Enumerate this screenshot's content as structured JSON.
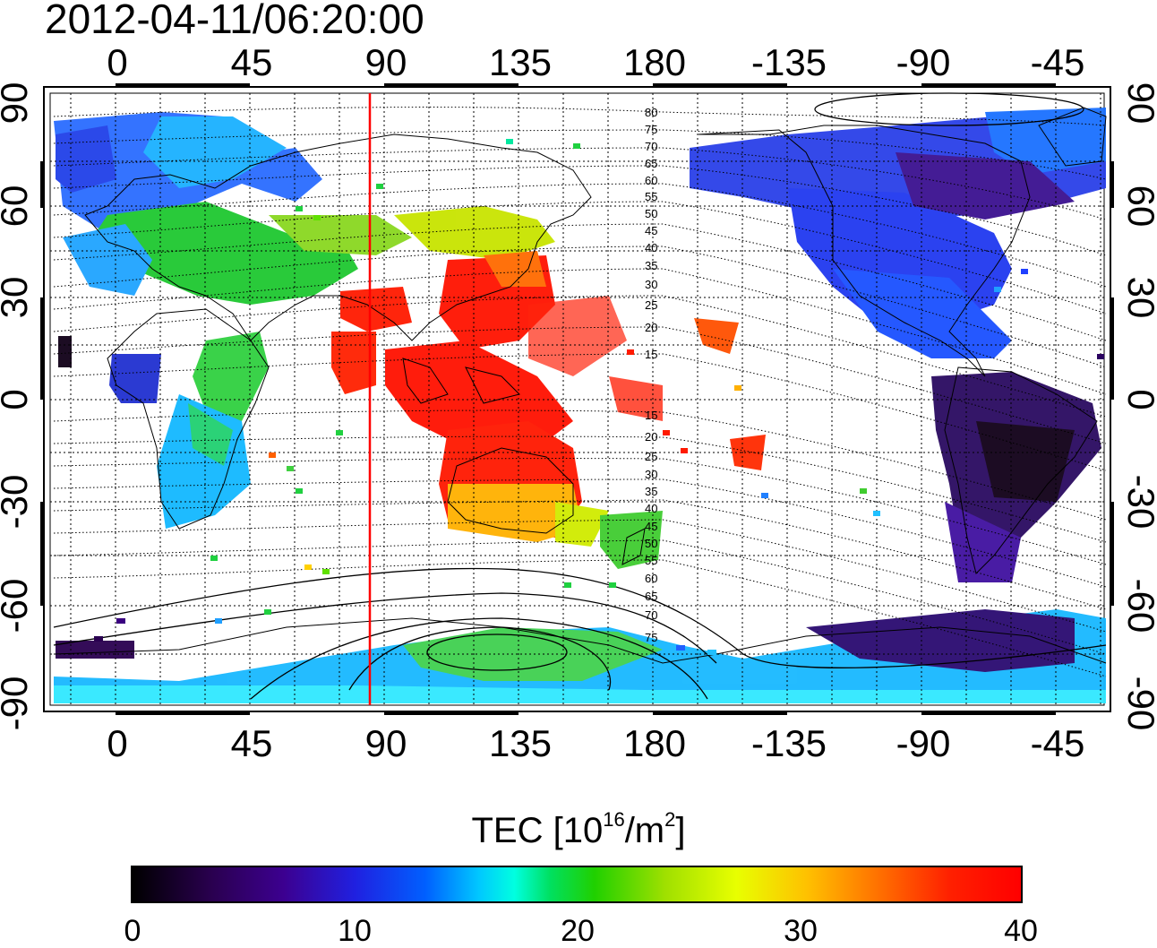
{
  "title": "2012-04-11/06:20:00",
  "map": {
    "lon_labels": [
      "0",
      "45",
      "90",
      "135",
      "180",
      "-135",
      "-90",
      "-45"
    ],
    "lat_labels": [
      "90",
      "60",
      "30",
      "0",
      "-30",
      "-60",
      "-90"
    ],
    "contour_labels_north": [
      "80",
      "75",
      "70",
      "65",
      "60",
      "55",
      "50",
      "45",
      "40",
      "35",
      "30",
      "25",
      "20",
      "15"
    ],
    "contour_labels_south": [
      "15",
      "20",
      "25",
      "30",
      "35",
      "40",
      "45",
      "50",
      "55",
      "60",
      "65",
      "70",
      "75"
    ],
    "marker_line": {
      "longitude": 85,
      "color": "#ff0000"
    }
  },
  "colorbar": {
    "label": "TEC  [10",
    "label_sup1": "16",
    "label_mid": "/m",
    "label_sup2": "2",
    "label_end": "]",
    "ticks": [
      "0",
      "10",
      "20",
      "30",
      "40"
    ],
    "range": [
      0,
      40
    ]
  }
}
